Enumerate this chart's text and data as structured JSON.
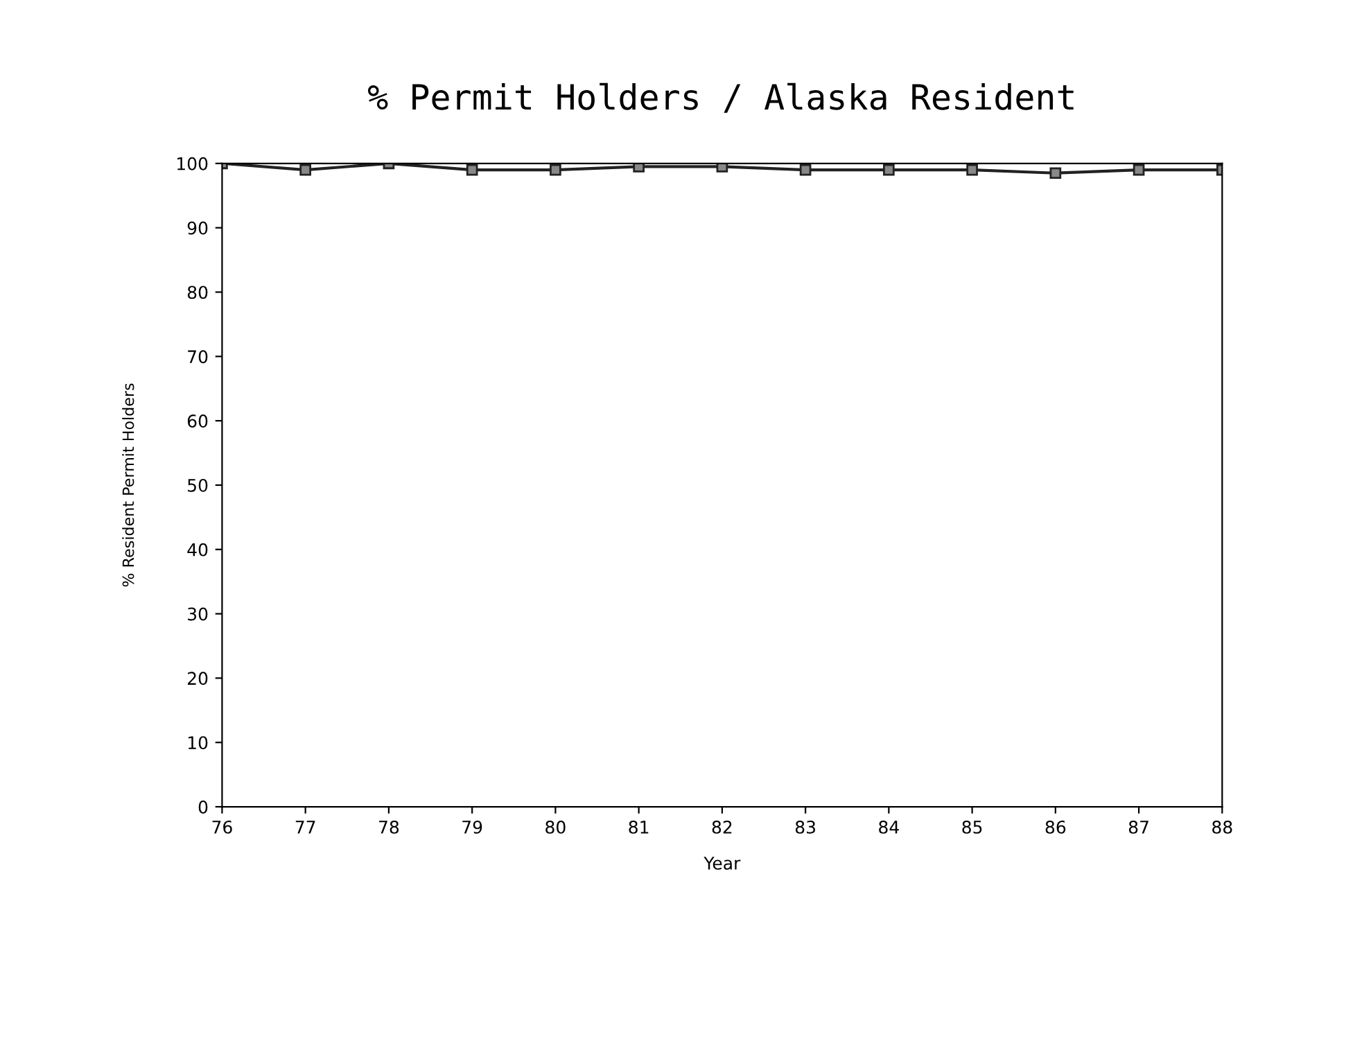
{
  "chart_data": {
    "type": "line",
    "title": "% Permit Holders / Alaska Resident",
    "xlabel": "Year",
    "ylabel": "% Resident Permit Holders",
    "categories": [
      "76",
      "77",
      "78",
      "79",
      "80",
      "81",
      "82",
      "83",
      "84",
      "85",
      "86",
      "87",
      "88"
    ],
    "series": [
      {
        "color": "#222222",
        "values": [
          100,
          99,
          100,
          99,
          99,
          99.5,
          99.5,
          99,
          99,
          99,
          98.5,
          99,
          99
        ]
      }
    ],
    "ylim": [
      0,
      100
    ],
    "yticks": [
      0,
      10,
      20,
      30,
      40,
      50,
      60,
      70,
      80,
      90,
      100
    ],
    "grid": false,
    "legend": false,
    "marker": "square",
    "line_style": "solid"
  }
}
